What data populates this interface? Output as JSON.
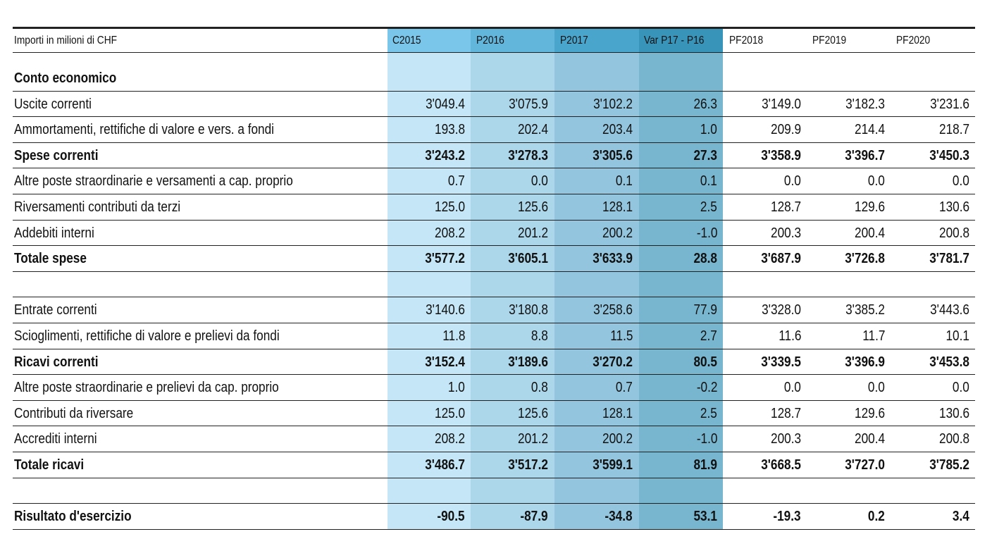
{
  "table": {
    "header_label": "Importi in milioni di CHF",
    "columns": [
      "C2015",
      "P2016",
      "P2017",
      "Var P17 - P16",
      "PF2018",
      "PF2019",
      "PF2020"
    ],
    "rows": [
      {
        "label": "Conto economico",
        "bold": true,
        "section": true,
        "values": []
      },
      {
        "label": "Uscite correnti",
        "bold": false,
        "values": [
          "3'049.4",
          "3'075.9",
          "3'102.2",
          "26.3",
          "3'149.0",
          "3'182.3",
          "3'231.6"
        ]
      },
      {
        "label": "Ammortamenti, rettifiche di valore e vers. a fondi",
        "bold": false,
        "values": [
          "193.8",
          "202.4",
          "203.4",
          "1.0",
          "209.9",
          "214.4",
          "218.7"
        ]
      },
      {
        "label": "Spese correnti",
        "bold": true,
        "values": [
          "3'243.2",
          "3'278.3",
          "3'305.6",
          "27.3",
          "3'358.9",
          "3'396.7",
          "3'450.3"
        ]
      },
      {
        "label": "Altre poste straordinarie e versamenti a cap. proprio",
        "bold": false,
        "values": [
          "0.7",
          "0.0",
          "0.1",
          "0.1",
          "0.0",
          "0.0",
          "0.0"
        ]
      },
      {
        "label": "Riversamenti contributi da terzi",
        "bold": false,
        "values": [
          "125.0",
          "125.6",
          "128.1",
          "2.5",
          "128.7",
          "129.6",
          "130.6"
        ]
      },
      {
        "label": "Addebiti interni",
        "bold": false,
        "values": [
          "208.2",
          "201.2",
          "200.2",
          "-1.0",
          "200.3",
          "200.4",
          "200.8"
        ]
      },
      {
        "label": "Totale spese",
        "bold": true,
        "values": [
          "3'577.2",
          "3'605.1",
          "3'633.9",
          "28.8",
          "3'687.9",
          "3'726.8",
          "3'781.7"
        ]
      },
      {
        "label": "",
        "bold": false,
        "spacer": true,
        "values": []
      },
      {
        "label": "Entrate correnti",
        "bold": false,
        "values": [
          "3'140.6",
          "3'180.8",
          "3'258.6",
          "77.9",
          "3'328.0",
          "3'385.2",
          "3'443.6"
        ]
      },
      {
        "label": "Scioglimenti, rettifiche di valore e prelievi da fondi",
        "bold": false,
        "values": [
          "11.8",
          "8.8",
          "11.5",
          "2.7",
          "11.6",
          "11.7",
          "10.1"
        ]
      },
      {
        "label": "Ricavi correnti",
        "bold": true,
        "values": [
          "3'152.4",
          "3'189.6",
          "3'270.2",
          "80.5",
          "3'339.5",
          "3'396.9",
          "3'453.8"
        ]
      },
      {
        "label": "Altre poste straordinarie e prelievi da cap. proprio",
        "bold": false,
        "values": [
          "1.0",
          "0.8",
          "0.7",
          "-0.2",
          "0.0",
          "0.0",
          "0.0"
        ]
      },
      {
        "label": "Contributi da riversare",
        "bold": false,
        "values": [
          "125.0",
          "125.6",
          "128.1",
          "2.5",
          "128.7",
          "129.6",
          "130.6"
        ]
      },
      {
        "label": "Accrediti interni",
        "bold": false,
        "values": [
          "208.2",
          "201.2",
          "200.2",
          "-1.0",
          "200.3",
          "200.4",
          "200.8"
        ]
      },
      {
        "label": "Totale ricavi",
        "bold": true,
        "values": [
          "3'486.7",
          "3'517.2",
          "3'599.1",
          "81.9",
          "3'668.5",
          "3'727.0",
          "3'785.2"
        ]
      },
      {
        "label": "",
        "bold": false,
        "spacer": true,
        "values": []
      },
      {
        "label": "Risultato d'esercizio",
        "bold": true,
        "values": [
          "-90.5",
          "-87.9",
          "-34.8",
          "53.1",
          "-19.3",
          "0.2",
          "3.4"
        ]
      }
    ]
  },
  "colors": {
    "header_shades": [
      "#79c6ea",
      "#62b5db",
      "#4aa5cc",
      "#3994ba"
    ],
    "body_shades": [
      "#c4e6f6",
      "#acd6ea",
      "#93c6de",
      "#78b6d0"
    ]
  }
}
